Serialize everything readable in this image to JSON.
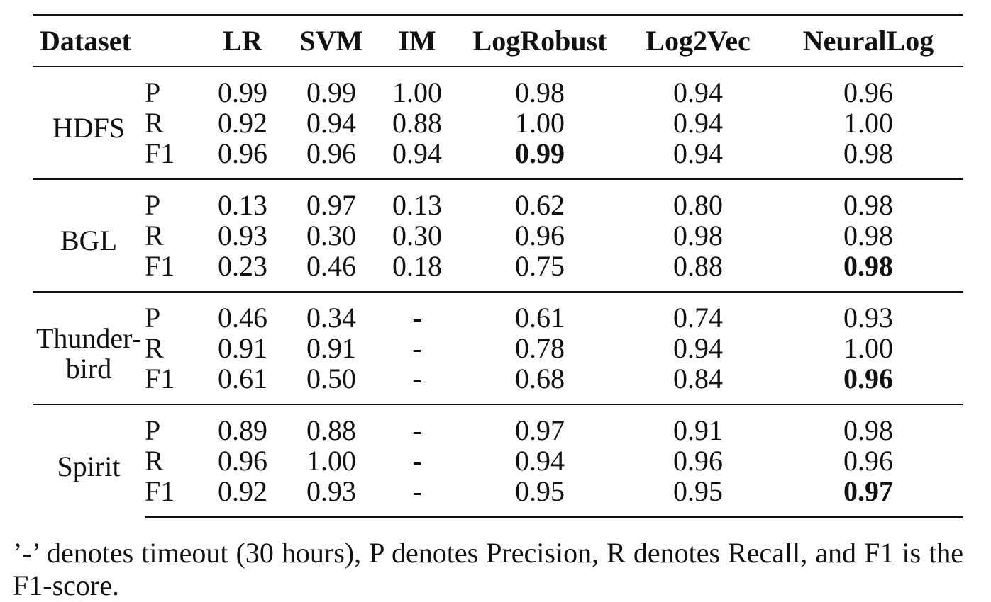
{
  "table": {
    "columns": {
      "dataset": "Dataset",
      "metric": "",
      "methods": [
        "LR",
        "SVM",
        "IM",
        "LogRobust",
        "Log2Vec",
        "NeuralLog"
      ]
    },
    "groups": [
      {
        "dataset_lines": [
          "HDFS"
        ],
        "rows": [
          {
            "metric": "P",
            "values": [
              "0.99",
              "0.99",
              "1.00",
              "0.98",
              "0.94",
              "0.96"
            ]
          },
          {
            "metric": "R",
            "values": [
              "0.92",
              "0.94",
              "0.88",
              "1.00",
              "0.94",
              "1.00"
            ]
          },
          {
            "metric": "F1",
            "values": [
              "0.96",
              "0.96",
              "0.94",
              "0.99",
              "0.94",
              "0.98"
            ]
          }
        ],
        "bold_f1_column": "LogRobust"
      },
      {
        "dataset_lines": [
          "BGL"
        ],
        "rows": [
          {
            "metric": "P",
            "values": [
              "0.13",
              "0.97",
              "0.13",
              "0.62",
              "0.80",
              "0.98"
            ]
          },
          {
            "metric": "R",
            "values": [
              "0.93",
              "0.30",
              "0.30",
              "0.96",
              "0.98",
              "0.98"
            ]
          },
          {
            "metric": "F1",
            "values": [
              "0.23",
              "0.46",
              "0.18",
              "0.75",
              "0.88",
              "0.98"
            ]
          }
        ],
        "bold_f1_column": "NeuralLog"
      },
      {
        "dataset_lines": [
          "Thunder-",
          "bird"
        ],
        "rows": [
          {
            "metric": "P",
            "values": [
              "0.46",
              "0.34",
              "-",
              "0.61",
              "0.74",
              "0.93"
            ]
          },
          {
            "metric": "R",
            "values": [
              "0.91",
              "0.91",
              "-",
              "0.78",
              "0.94",
              "1.00"
            ]
          },
          {
            "metric": "F1",
            "values": [
              "0.61",
              "0.50",
              "-",
              "0.68",
              "0.84",
              "0.96"
            ]
          }
        ],
        "bold_f1_column": "NeuralLog"
      },
      {
        "dataset_lines": [
          "Spirit"
        ],
        "rows": [
          {
            "metric": "P",
            "values": [
              "0.89",
              "0.88",
              "-",
              "0.97",
              "0.91",
              "0.98"
            ]
          },
          {
            "metric": "R",
            "values": [
              "0.96",
              "1.00",
              "-",
              "0.94",
              "0.96",
              "0.96"
            ]
          },
          {
            "metric": "F1",
            "values": [
              "0.92",
              "0.93",
              "-",
              "0.95",
              "0.95",
              "0.97"
            ]
          }
        ],
        "bold_f1_column": "NeuralLog"
      }
    ]
  },
  "footnote": "’-’ denotes timeout (30 hours), P denotes Precision, R denotes Recall, and F1 is the F1-score."
}
